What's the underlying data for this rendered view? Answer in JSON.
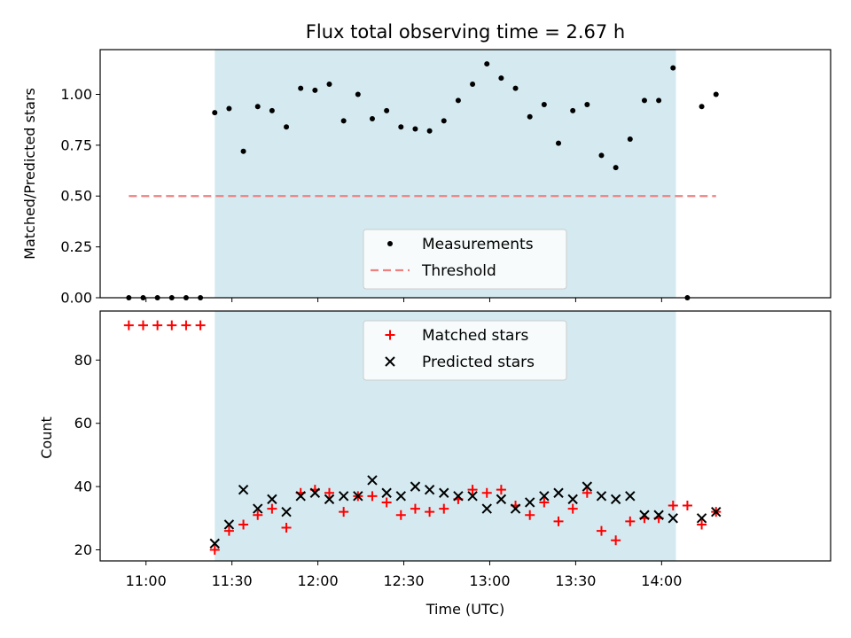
{
  "colors": {
    "span": "#d4eaf0",
    "threshold": "#f08080",
    "matched": "#ff0000",
    "predicted": "#000000",
    "measurement": "#000000"
  },
  "chart_data": [
    {
      "type": "scatter",
      "title": "Flux total observing time = 2.67 h",
      "xlabel": "",
      "ylabel": "Matched/Predicted stars",
      "ylim": [
        0,
        1.22
      ],
      "yticks": [
        0.0,
        0.25,
        0.5,
        0.75,
        1.0
      ],
      "ytick_labels": [
        "0.00",
        "0.25",
        "0.50",
        "0.75",
        "1.00"
      ],
      "xlim": [
        "10:44",
        "14:59"
      ],
      "shaded_span": [
        "11:24",
        "14:05"
      ],
      "legend": {
        "placement": "lower-center",
        "entries": [
          "Measurements",
          "Threshold"
        ]
      },
      "series": [
        {
          "name": "Measurements",
          "x": [
            "10:54",
            "10:59",
            "11:04",
            "11:09",
            "11:14",
            "11:19",
            "11:24",
            "11:29",
            "11:34",
            "11:39",
            "11:44",
            "11:49",
            "11:54",
            "11:59",
            "12:04",
            "12:09",
            "12:14",
            "12:19",
            "12:24",
            "12:29",
            "12:34",
            "12:39",
            "12:44",
            "12:49",
            "12:54",
            "12:59",
            "13:04",
            "13:09",
            "13:14",
            "13:19",
            "13:24",
            "13:29",
            "13:34",
            "13:39",
            "13:44",
            "13:49",
            "13:54",
            "13:59",
            "14:04",
            "14:09",
            "14:14",
            "14:19"
          ],
          "values": [
            0.0,
            0.0,
            0.0,
            0.0,
            0.0,
            0.0,
            0.91,
            0.93,
            0.72,
            0.94,
            0.92,
            0.84,
            1.03,
            1.02,
            1.05,
            0.87,
            1.0,
            0.88,
            0.92,
            0.84,
            0.83,
            0.82,
            0.87,
            0.97,
            1.05,
            1.15,
            1.08,
            1.03,
            0.89,
            0.95,
            0.76,
            0.92,
            0.95,
            0.7,
            0.64,
            0.78,
            0.97,
            0.97,
            1.13,
            0.0,
            0.94,
            1.0
          ]
        },
        {
          "name": "Threshold",
          "x": [
            "10:54",
            "14:19"
          ],
          "values": [
            0.5,
            0.5
          ]
        }
      ]
    },
    {
      "type": "scatter",
      "title": "",
      "xlabel": "Time (UTC)",
      "ylabel": "Count",
      "ylim": [
        16.5,
        95.5
      ],
      "yticks": [
        20,
        40,
        60,
        80
      ],
      "ytick_labels": [
        "20",
        "40",
        "60",
        "80"
      ],
      "xlim": [
        "10:44",
        "14:59"
      ],
      "xticks": [
        "11:00",
        "11:30",
        "12:00",
        "12:30",
        "13:00",
        "13:30",
        "14:00"
      ],
      "shaded_span": [
        "11:24",
        "14:05"
      ],
      "legend": {
        "placement": "upper-center",
        "entries": [
          "Matched stars",
          "Predicted stars"
        ]
      },
      "series": [
        {
          "name": "Matched stars",
          "x": [
            "10:54",
            "10:59",
            "11:04",
            "11:09",
            "11:14",
            "11:19",
            "11:24",
            "11:29",
            "11:34",
            "11:39",
            "11:44",
            "11:49",
            "11:54",
            "11:59",
            "12:04",
            "12:09",
            "12:14",
            "12:19",
            "12:24",
            "12:29",
            "12:34",
            "12:39",
            "12:44",
            "12:49",
            "12:54",
            "12:59",
            "13:04",
            "13:09",
            "13:14",
            "13:19",
            "13:24",
            "13:29",
            "13:34",
            "13:39",
            "13:44",
            "13:49",
            "13:54",
            "13:59",
            "14:04",
            "14:09",
            "14:14",
            "14:19"
          ],
          "values": [
            91,
            91,
            91,
            91,
            91,
            91,
            20,
            26,
            28,
            31,
            33,
            27,
            38,
            39,
            38,
            32,
            37,
            37,
            35,
            31,
            33,
            32,
            33,
            36,
            39,
            38,
            39,
            34,
            31,
            35,
            29,
            33,
            38,
            26,
            23,
            29,
            30,
            30,
            34,
            34,
            28,
            32
          ]
        },
        {
          "name": "Predicted stars",
          "x": [
            "11:24",
            "11:29",
            "11:34",
            "11:39",
            "11:44",
            "11:49",
            "11:54",
            "11:59",
            "12:04",
            "12:09",
            "12:14",
            "12:19",
            "12:24",
            "12:29",
            "12:34",
            "12:39",
            "12:44",
            "12:49",
            "12:54",
            "12:59",
            "13:04",
            "13:09",
            "13:14",
            "13:19",
            "13:24",
            "13:29",
            "13:34",
            "13:39",
            "13:44",
            "13:49",
            "13:54",
            "13:59",
            "14:04",
            "14:14",
            "14:19"
          ],
          "values": [
            22,
            28,
            39,
            33,
            36,
            32,
            37,
            38,
            36,
            37,
            37,
            42,
            38,
            37,
            40,
            39,
            38,
            37,
            37,
            33,
            36,
            33,
            35,
            37,
            38,
            36,
            40,
            37,
            36,
            37,
            31,
            31,
            30,
            30,
            32
          ]
        }
      ]
    }
  ]
}
